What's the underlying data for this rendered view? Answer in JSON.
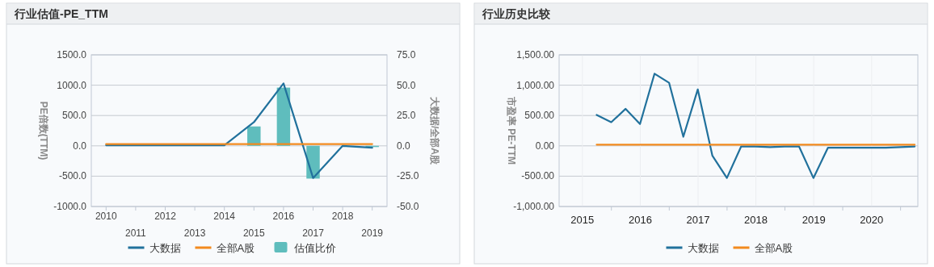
{
  "chart_data": [
    {
      "type": "line",
      "title": "行业估值-PE_TTM",
      "ylabel": "PE倍数(TTM)",
      "y2label": "大数据/全部A股",
      "categories": [
        "2010",
        "2011",
        "2012",
        "2013",
        "2014",
        "2015",
        "2016",
        "2017",
        "2018",
        "2019"
      ],
      "series": [
        {
          "name": "大数据",
          "color": "#21719c",
          "values": [
            10,
            10,
            10,
            10,
            10,
            390,
            1030,
            -530,
            0,
            -30
          ]
        },
        {
          "name": "全部A股",
          "color": "#f28a1e",
          "values": [
            30,
            30,
            30,
            30,
            30,
            30,
            30,
            30,
            30,
            30
          ]
        },
        {
          "name": "估值比价",
          "type": "bar",
          "axis": "y2",
          "color": "#5fbdbd",
          "values": [
            null,
            null,
            null,
            null,
            null,
            16,
            48,
            -27,
            null,
            -1
          ]
        }
      ],
      "ylim": [
        -1000,
        1500
      ],
      "yticks": [
        {
          "value": -1000,
          "label": "-1000.0"
        },
        {
          "value": -500,
          "label": "-500.0"
        },
        {
          "value": 0,
          "label": "0.0"
        },
        {
          "value": 500,
          "label": "500.0"
        },
        {
          "value": 1000,
          "label": "1000.0"
        },
        {
          "value": 1500,
          "label": "1500.0"
        }
      ],
      "y2lim": [
        -50,
        75
      ],
      "y2ticks": [
        {
          "value": -50,
          "label": "-50.0"
        },
        {
          "value": -25,
          "label": "-25.0"
        },
        {
          "value": 0,
          "label": "0.0"
        },
        {
          "value": 25,
          "label": "25.0"
        },
        {
          "value": 50,
          "label": "50.0"
        },
        {
          "value": 75,
          "label": "75.0"
        }
      ],
      "grid": "y",
      "legend": "bottom",
      "marker": "none"
    },
    {
      "type": "line",
      "title": "行业历史比较",
      "ylabel": "市盈率 PE-TTM",
      "x": [
        "2015-09-30",
        "2015-12-31",
        "2016-03-31",
        "2016-06-30",
        "2016-09-30",
        "2016-12-31",
        "2017-03-31",
        "2017-06-30",
        "2017-09-30",
        "2017-12-31",
        "2018-03-31",
        "2018-06-30",
        "2018-09-30",
        "2018-12-31",
        "2019-03-31",
        "2019-06-30",
        "2019-09-30",
        "2019-12-31",
        "2020-03-31",
        "2020-06-30",
        "2020-09-30",
        "2020-12-31",
        "2021-03-31"
      ],
      "series": [
        {
          "name": "大数据",
          "color": "#21719c",
          "values": [
            510,
            390,
            610,
            360,
            1190,
            1040,
            150,
            930,
            -160,
            -530,
            -10,
            -10,
            -20,
            -10,
            -10,
            -530,
            -30,
            -30,
            -30,
            -30,
            -30,
            -20,
            -10
          ]
        },
        {
          "name": "全部A股",
          "color": "#f28a1e",
          "values": [
            20,
            20,
            20,
            20,
            20,
            20,
            20,
            20,
            20,
            20,
            20,
            20,
            20,
            20,
            20,
            20,
            20,
            20,
            20,
            20,
            20,
            20,
            20
          ]
        }
      ],
      "xlim": [
        "2015-02-05",
        "2021-04-20"
      ],
      "xticks": [
        {
          "value": "2015-07-02",
          "label": "2015"
        },
        {
          "value": "2016-01-01",
          "label": null
        },
        {
          "value": "2016-07-02",
          "label": "2016"
        },
        {
          "value": "2017-01-01",
          "label": null
        },
        {
          "value": "2017-07-02",
          "label": "2017"
        },
        {
          "value": "2018-01-01",
          "label": null
        },
        {
          "value": "2018-07-02",
          "label": "2018"
        },
        {
          "value": "2019-01-01",
          "label": null
        },
        {
          "value": "2019-07-02",
          "label": "2019"
        },
        {
          "value": "2020-01-01",
          "label": null
        },
        {
          "value": "2020-07-02",
          "label": "2020"
        },
        {
          "value": "2021-01-01",
          "label": null
        }
      ],
      "ylim": [
        -1000,
        1500
      ],
      "yticks": [
        {
          "value": -1000,
          "label": "-1,000.00"
        },
        {
          "value": -500,
          "label": "-500.00"
        },
        {
          "value": 0,
          "label": "0.00"
        },
        {
          "value": 500,
          "label": "500.00"
        },
        {
          "value": 1000,
          "label": "1,000.00"
        },
        {
          "value": 1500,
          "label": "1,500.00"
        }
      ],
      "grid": true,
      "legend": "bottom",
      "marker": "none"
    }
  ]
}
